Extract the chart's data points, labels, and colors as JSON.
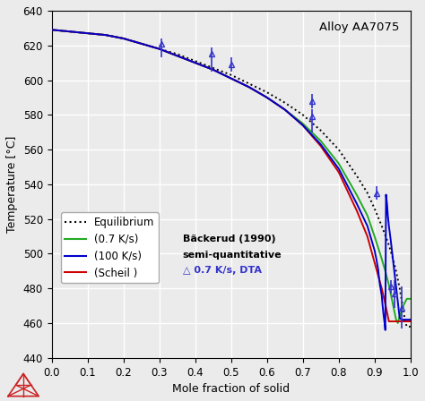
{
  "title": "Alloy AA7075",
  "xlabel": "Mole fraction of solid",
  "ylabel": "Temperature [°C]",
  "xlim": [
    0.0,
    1.0
  ],
  "ylim": [
    440,
    640
  ],
  "yticks": [
    440,
    460,
    480,
    500,
    520,
    540,
    560,
    580,
    600,
    620,
    640
  ],
  "xticks": [
    0.0,
    0.1,
    0.2,
    0.3,
    0.4,
    0.5,
    0.6,
    0.7,
    0.8,
    0.9,
    1.0
  ],
  "bg_color": "#ebebeb",
  "grid_color": "#ffffff",
  "eq_x": [
    0.0,
    0.05,
    0.1,
    0.15,
    0.2,
    0.25,
    0.3,
    0.35,
    0.4,
    0.45,
    0.5,
    0.55,
    0.6,
    0.65,
    0.7,
    0.75,
    0.8,
    0.85,
    0.88,
    0.9,
    0.92,
    0.94,
    0.95,
    0.96,
    0.97,
    0.975,
    0.98,
    0.985,
    0.99,
    1.0
  ],
  "eq_y": [
    629,
    628,
    627,
    626,
    624,
    621,
    618,
    615,
    611,
    607,
    603,
    598,
    593,
    587,
    580,
    571,
    560,
    545,
    535,
    526,
    516,
    505,
    498,
    490,
    480,
    474,
    468,
    461,
    458,
    458
  ],
  "slow_x": [
    0.0,
    0.05,
    0.1,
    0.15,
    0.2,
    0.25,
    0.3,
    0.35,
    0.4,
    0.45,
    0.5,
    0.55,
    0.6,
    0.65,
    0.7,
    0.75,
    0.8,
    0.85,
    0.88,
    0.9,
    0.92,
    0.93,
    0.94,
    0.95,
    0.96,
    0.965,
    0.97,
    0.975,
    0.98,
    0.985,
    0.99,
    1.0
  ],
  "slow_y": [
    629,
    628,
    627,
    626,
    624,
    621,
    618,
    614,
    610,
    606,
    601,
    596,
    590,
    583,
    575,
    565,
    552,
    534,
    522,
    510,
    497,
    490,
    482,
    472,
    462,
    460,
    464,
    467,
    470,
    472,
    474,
    474
  ],
  "fast_x": [
    0.0,
    0.05,
    0.1,
    0.15,
    0.2,
    0.25,
    0.3,
    0.35,
    0.4,
    0.45,
    0.5,
    0.55,
    0.6,
    0.65,
    0.7,
    0.75,
    0.8,
    0.85,
    0.88,
    0.9,
    0.905,
    0.91,
    0.912,
    0.915,
    0.92,
    0.922,
    0.925,
    0.928,
    0.93,
    0.932,
    0.935,
    0.937,
    0.94,
    0.945,
    0.95,
    0.955,
    0.96,
    0.965,
    0.97,
    0.975,
    0.98,
    0.99,
    1.0
  ],
  "fast_y": [
    629,
    628,
    627,
    626,
    624,
    621,
    618,
    614,
    610,
    606,
    601,
    596,
    590,
    583,
    574,
    563,
    549,
    529,
    516,
    502,
    497,
    491,
    487,
    482,
    476,
    471,
    465,
    460,
    456,
    534,
    528,
    522,
    516,
    508,
    499,
    490,
    481,
    472,
    463,
    462,
    462,
    462,
    462
  ],
  "scheil_x": [
    0.0,
    0.05,
    0.1,
    0.15,
    0.2,
    0.25,
    0.3,
    0.35,
    0.4,
    0.45,
    0.5,
    0.55,
    0.6,
    0.65,
    0.7,
    0.75,
    0.8,
    0.85,
    0.88,
    0.9,
    0.92,
    0.93,
    0.94,
    0.95,
    1.0
  ],
  "scheil_y": [
    629,
    628,
    627,
    626,
    624,
    621,
    618,
    614,
    610,
    606,
    601,
    596,
    590,
    583,
    574,
    562,
    547,
    525,
    510,
    495,
    480,
    471,
    461,
    461,
    461
  ],
  "dta_x": [
    0.305,
    0.445,
    0.5,
    0.725,
    0.725,
    0.905,
    0.945,
    0.955,
    0.975
  ],
  "dta_y": [
    621,
    615,
    609,
    588,
    579,
    535,
    481,
    477,
    469
  ],
  "dta_yerr_low": [
    8,
    10,
    4,
    4,
    9,
    4,
    4,
    8,
    12
  ],
  "dta_yerr_high": [
    3,
    4,
    4,
    4,
    4,
    4,
    4,
    8,
    12
  ],
  "annot_text1": "Bäckerud (1990)",
  "annot_text2": "semi-quantitative",
  "annot_text3": "△ 0.7 K/s, DTA"
}
